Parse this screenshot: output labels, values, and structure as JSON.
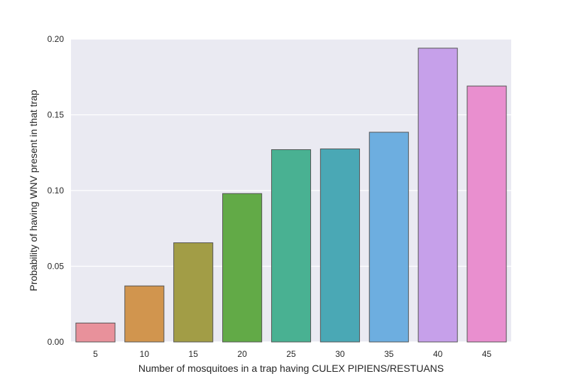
{
  "chart_data": {
    "type": "bar",
    "title": "",
    "xlabel": "Number of mosquitoes in a trap having CULEX PIPIENS/RESTUANS",
    "ylabel": "Probability of having WNV present in that trap",
    "categories": [
      "5",
      "10",
      "15",
      "20",
      "25",
      "30",
      "35",
      "40",
      "45"
    ],
    "values": [
      0.0125,
      0.037,
      0.0655,
      0.098,
      0.127,
      0.1275,
      0.1385,
      0.194,
      0.169
    ],
    "colors": [
      "#e8919b",
      "#d1954e",
      "#a29d46",
      "#62aa47",
      "#49b192",
      "#4aa8b5",
      "#6daee0",
      "#c6a0ea",
      "#e98fcf"
    ],
    "ylim": [
      0,
      0.2
    ],
    "yticks": [
      "0.00",
      "0.05",
      "0.10",
      "0.15",
      "0.20"
    ],
    "ytick_values": [
      0,
      0.05,
      0.1,
      0.15,
      0.2
    ],
    "grid": true,
    "background": "#eaeaf2"
  }
}
